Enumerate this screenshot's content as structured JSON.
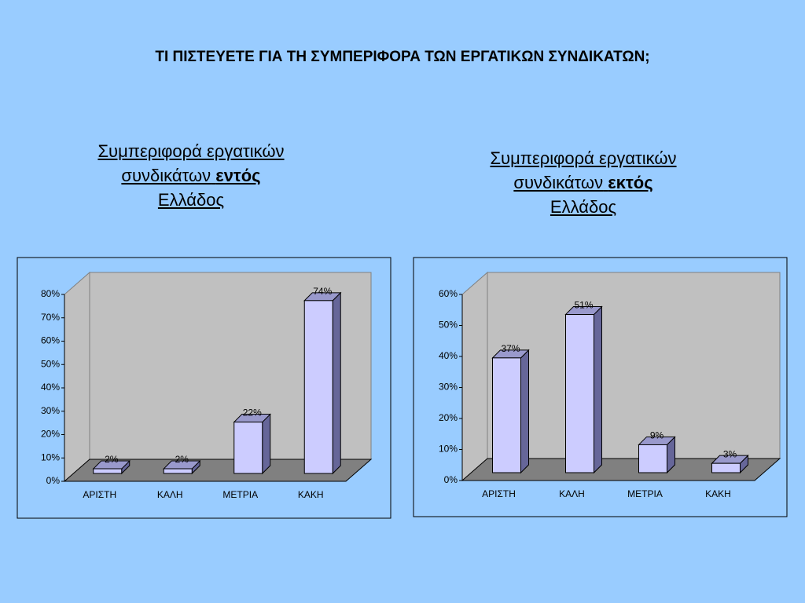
{
  "header": {
    "title": "ΤΙ ΠΙΣΤΕΥΕΤΕ ΓΙΑ ΤΗ ΣΥΜΠΕΡΙΦΟΡΑ ΤΩΝ ΕΡΓΑΤΙΚΩΝ ΣΥΝΔΙΚΑΤΩΝ;"
  },
  "chart_data": [
    {
      "type": "bar3d",
      "title": [
        "Συμπεριφορά εργατικών",
        "συνδικάτων",
        "εντός",
        "Ελλάδος"
      ],
      "categories": [
        "ΑΡΙΣΤΗ",
        "ΚΑΛΗ",
        "ΜΕΤΡΙΑ",
        "ΚΑΚΗ"
      ],
      "values": [
        2,
        2,
        22,
        74
      ],
      "value_labels": [
        "2%",
        "2%",
        "22%",
        "74%"
      ],
      "color": "#ccccff",
      "ylim": [
        0,
        80
      ],
      "yticks": [
        {
          "value": 0,
          "label": "0%"
        },
        {
          "value": 10,
          "label": "10%"
        },
        {
          "value": 20,
          "label": "20%"
        },
        {
          "value": 30,
          "label": "30%"
        },
        {
          "value": 40,
          "label": "40%"
        },
        {
          "value": 50,
          "label": "50%"
        },
        {
          "value": 60,
          "label": "60%"
        },
        {
          "value": 70,
          "label": "70%"
        },
        {
          "value": 80,
          "label": "80%"
        }
      ],
      "grid": false
    },
    {
      "type": "bar3d",
      "title": [
        "Συμπεριφορά εργατικών",
        "συνδικάτων",
        "εκτός",
        "Ελλάδος"
      ],
      "categories": [
        "ΑΡΙΣΤΗ",
        "ΚΑΛΗ",
        "ΜΕΤΡΙΑ",
        "ΚΑΚΗ"
      ],
      "values": [
        37,
        51,
        9,
        3
      ],
      "value_labels": [
        "37%",
        "51%",
        "9%",
        "3%"
      ],
      "color": "#ccccff",
      "ylim": [
        0,
        60
      ],
      "yticks": [
        {
          "value": 0,
          "label": "0%"
        },
        {
          "value": 10,
          "label": "10%"
        },
        {
          "value": 20,
          "label": "20%"
        },
        {
          "value": 30,
          "label": "30%"
        },
        {
          "value": 40,
          "label": "40%"
        },
        {
          "value": 50,
          "label": "50%"
        },
        {
          "value": 60,
          "label": "60%"
        }
      ],
      "grid": false
    }
  ]
}
